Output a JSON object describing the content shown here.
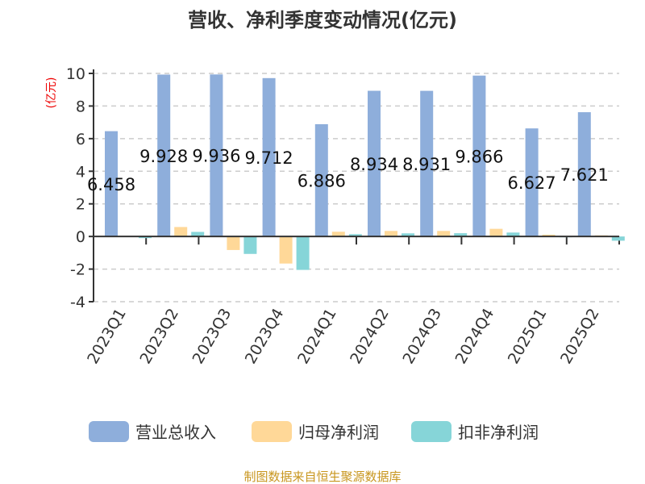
{
  "chart_data": {
    "type": "bar",
    "title": "营收、净利季度变动情况(亿元)",
    "ylabel": "(亿元)",
    "ylim": [
      -4,
      10
    ],
    "yticks": [
      -4,
      -2,
      0,
      2,
      4,
      6,
      8,
      10
    ],
    "grid": true,
    "legend_placement": "bottom",
    "categories": [
      "2023Q1",
      "2023Q2",
      "2023Q3",
      "2023Q4",
      "2024Q1",
      "2024Q2",
      "2024Q3",
      "2024Q4",
      "2025Q1",
      "2025Q2"
    ],
    "series": [
      {
        "name": "营业总收入",
        "color": "#8eaedb",
        "values": [
          6.458,
          9.928,
          9.936,
          9.712,
          6.886,
          8.934,
          8.931,
          9.866,
          6.627,
          7.621
        ],
        "labels": [
          "6.458",
          "9.928",
          "9.936",
          "9.712",
          "6.886",
          "8.934",
          "8.931",
          "9.866",
          "6.627",
          "7.621"
        ]
      },
      {
        "name": "归母净利润",
        "color": "#ffd898",
        "values": [
          0.01,
          0.58,
          -0.83,
          -1.66,
          0.29,
          0.34,
          0.34,
          0.47,
          0.11,
          0.07
        ]
      },
      {
        "name": "扣非净利润",
        "color": "#86d5d8",
        "values": [
          -0.1,
          0.28,
          -1.07,
          -2.05,
          0.14,
          0.19,
          0.2,
          0.24,
          -0.03,
          -0.26
        ]
      }
    ]
  },
  "footer": "制图数据来自恒生聚源数据库"
}
